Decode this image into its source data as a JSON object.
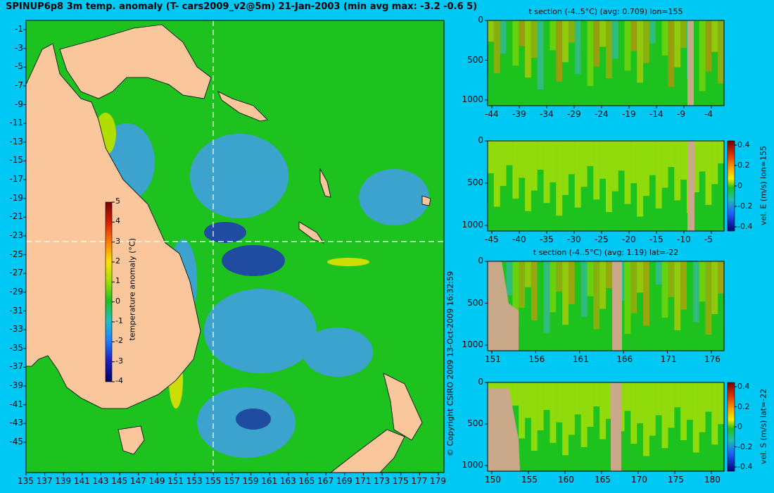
{
  "map": {
    "title": "SPINUP6p8 3m temp. anomaly (T- cars2009_v2@5m) 21-Jan-2003 (min avg max: -3.2 -0.6 5)",
    "lat_ticks": [
      "-1",
      "-3",
      "-5",
      "-7",
      "-9",
      "-11",
      "-13",
      "-15",
      "-17",
      "-19",
      "-21",
      "-23",
      "-25",
      "-27",
      "-29",
      "-31",
      "-33",
      "-35",
      "-37",
      "-39",
      "-41",
      "-43",
      "-45"
    ],
    "lon_ticks": [
      "135",
      "137",
      "139",
      "141",
      "143",
      "145",
      "147",
      "149",
      "151",
      "153",
      "155",
      "157",
      "159",
      "161",
      "163",
      "165",
      "167",
      "169",
      "171",
      "173",
      "175",
      "177",
      "179"
    ],
    "colorbar": {
      "ticks": [
        "5",
        "4",
        "3",
        "2",
        "1",
        "0",
        "-1",
        "-2",
        "-3",
        "-4"
      ],
      "label": "temperature anomaly (°C)"
    },
    "copyright": "© Copyright CSIRO 2009   13-Oct-2009 16:32:59",
    "colors": {
      "land": "#f9c79b",
      "ocean": "#1ec21e",
      "background": "#00c8f4"
    }
  },
  "panels": [
    {
      "title": "t section (-4..5°C) (avg: 0.709) lon=155",
      "x_ticks": [
        "-44",
        "-39",
        "-34",
        "-29",
        "-24",
        "-19",
        "-14",
        "-9",
        "-4"
      ],
      "y_ticks": [
        "0",
        "500",
        "1000"
      ],
      "colorbar": null
    },
    {
      "title": "",
      "x_ticks": [
        "-45",
        "-40",
        "-35",
        "-30",
        "-25",
        "-20",
        "-15",
        "-10",
        "-5"
      ],
      "y_ticks": [
        "0",
        "500",
        "1000"
      ],
      "colorbar": {
        "ticks": [
          "0.4",
          "0.2",
          "0",
          "-0.2",
          "-0.4"
        ],
        "label": "vel. E (m/s) lon=155"
      }
    },
    {
      "title": "t section (-4..5°C) (avg: 1.19) lat=-22",
      "x_ticks": [
        "151",
        "156",
        "161",
        "166",
        "171",
        "176"
      ],
      "y_ticks": [
        "0",
        "500",
        "1000"
      ],
      "colorbar": null
    },
    {
      "title": "",
      "x_ticks": [
        "150",
        "155",
        "160",
        "165",
        "170",
        "175",
        "180"
      ],
      "y_ticks": [
        "0",
        "500",
        "1000"
      ],
      "colorbar": {
        "ticks": [
          "0.4",
          "0.2",
          "0",
          "-0.2",
          "-0.4"
        ],
        "label": "vel. S (m/s) lat=-22"
      }
    }
  ]
}
